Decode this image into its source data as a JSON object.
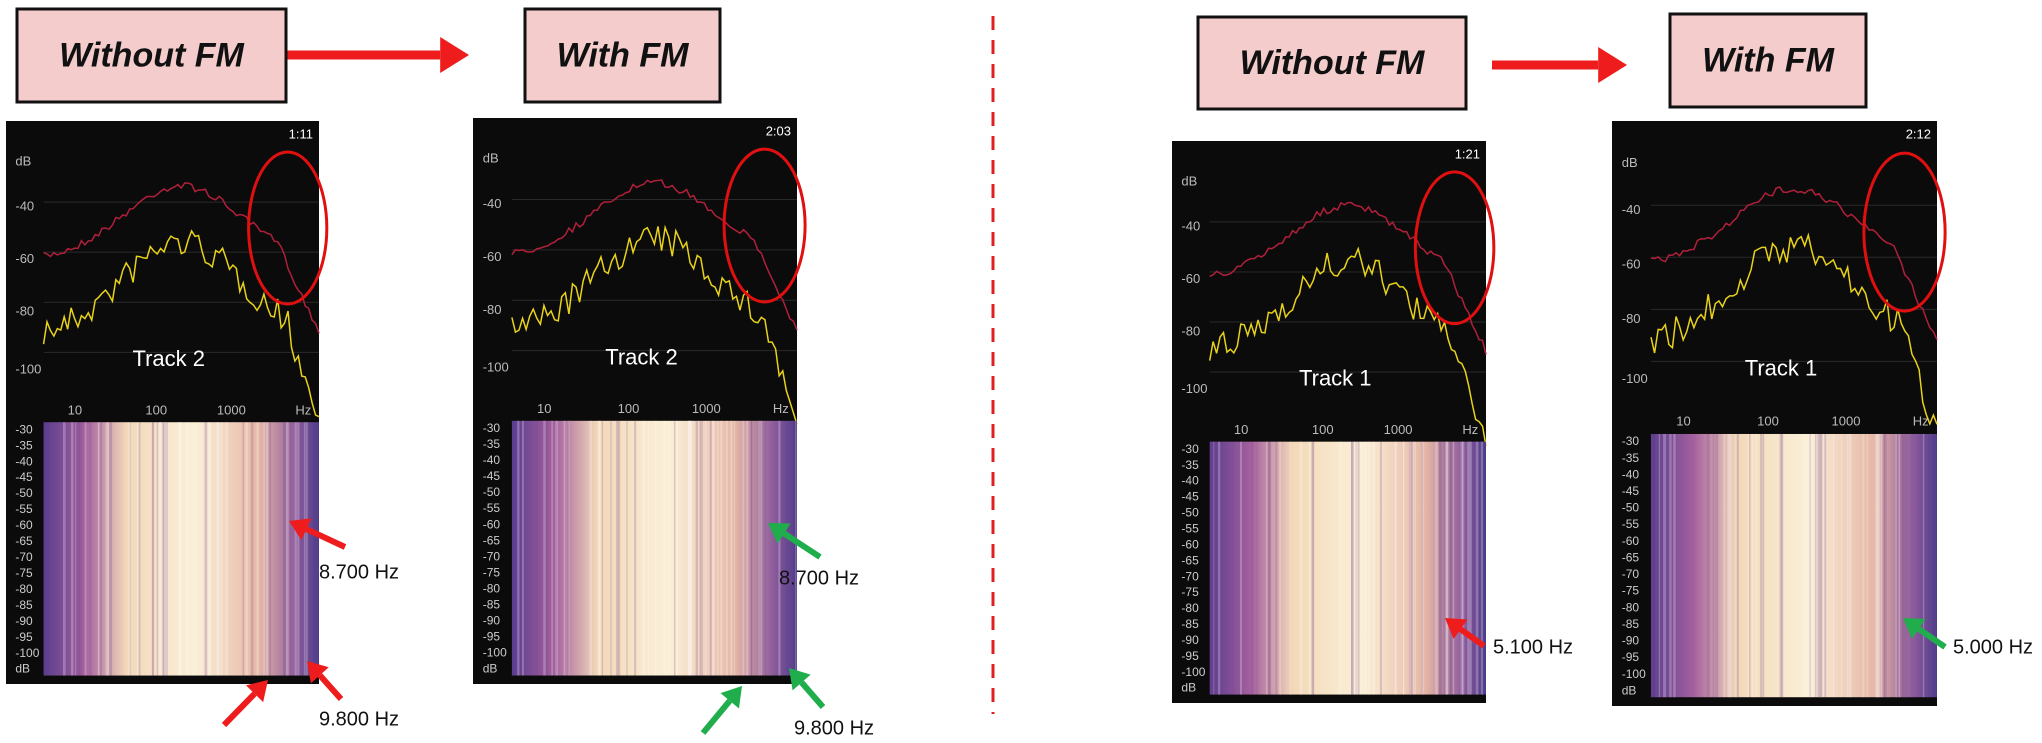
{
  "panels": [
    {
      "header": "Without FM",
      "track": "Track 2",
      "time": "1:11",
      "annotations": [
        "8.700 Hz",
        "9.800 Hz"
      ]
    },
    {
      "header": "With FM",
      "track": "Track 2",
      "time": "2:03",
      "annotations": [
        "8.700 Hz",
        "9.800 Hz"
      ]
    },
    {
      "header": "Without FM",
      "track": "Track 1",
      "time": "1:21",
      "annotations": [
        "5.100 Hz"
      ]
    },
    {
      "header": "With FM",
      "track": "Track 1",
      "time": "2:12",
      "annotations": [
        "5.000 Hz"
      ]
    }
  ],
  "spectrum_y_ticks": [
    "dB",
    "-40",
    "-60",
    "-80",
    "-100"
  ],
  "spectrum_x_ticks": [
    "10",
    "100",
    "1000",
    "Hz"
  ],
  "spectrogram_ticks": [
    "-30",
    "-35",
    "-40",
    "-45",
    "-50",
    "-55",
    "-60",
    "-65",
    "-70",
    "-75",
    "-80",
    "-85",
    "-90",
    "-95",
    "-100",
    "dB"
  ]
}
